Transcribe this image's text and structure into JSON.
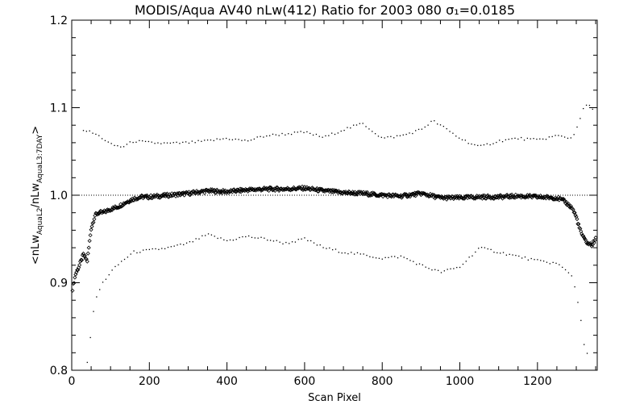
{
  "chart_data": {
    "type": "scatter",
    "title": "MODIS/Aqua AV40 nLw(412) Ratio for 2003 080 σ₁=0.0185",
    "xlabel": "Scan Pixel",
    "ylabel": "<nLw_AquaL2/nLw_AquaL3:7DAY>",
    "xlim": [
      0,
      1354
    ],
    "ylim": [
      0.8,
      1.2
    ],
    "xticks": [
      0,
      200,
      400,
      600,
      800,
      1000,
      1200
    ],
    "yticks": [
      0.8,
      0.9,
      1.0,
      1.1,
      1.2
    ],
    "reference_line": 1.0,
    "series": [
      {
        "key": "mean",
        "style": "diamond",
        "x": [
          2,
          10,
          20,
          30,
          40,
          50,
          60,
          70,
          80,
          100,
          120,
          140,
          160,
          180,
          200,
          250,
          300,
          350,
          400,
          450,
          500,
          550,
          600,
          650,
          700,
          750,
          800,
          850,
          900,
          950,
          1000,
          1050,
          1100,
          1150,
          1200,
          1250,
          1270,
          1290,
          1300,
          1310,
          1320,
          1330,
          1340,
          1350
        ],
        "y": [
          0.893,
          0.91,
          0.92,
          0.932,
          0.925,
          0.962,
          0.977,
          0.98,
          0.98,
          0.984,
          0.987,
          0.992,
          0.996,
          0.998,
          0.998,
          1.0,
          1.002,
          1.005,
          1.004,
          1.006,
          1.007,
          1.007,
          1.008,
          1.005,
          1.003,
          1.002,
          1.0,
          0.999,
          1.002,
          0.997,
          0.997,
          0.998,
          0.998,
          0.999,
          0.998,
          0.997,
          0.993,
          0.985,
          0.975,
          0.96,
          0.95,
          0.945,
          0.943,
          0.95
        ]
      },
      {
        "key": "upper",
        "style": "dot",
        "x": [
          30,
          60,
          80,
          100,
          130,
          160,
          200,
          250,
          300,
          350,
          400,
          450,
          500,
          550,
          600,
          650,
          700,
          750,
          800,
          850,
          900,
          930,
          950,
          1000,
          1050,
          1100,
          1150,
          1200,
          1250,
          1290,
          1320,
          1330,
          1345
        ],
        "y": [
          1.075,
          1.07,
          1.065,
          1.058,
          1.055,
          1.062,
          1.06,
          1.059,
          1.06,
          1.062,
          1.065,
          1.062,
          1.068,
          1.07,
          1.072,
          1.066,
          1.075,
          1.082,
          1.065,
          1.068,
          1.075,
          1.085,
          1.08,
          1.065,
          1.055,
          1.062,
          1.065,
          1.063,
          1.068,
          1.065,
          1.1,
          1.105,
          1.095
        ]
      },
      {
        "key": "lower",
        "style": "dot",
        "x": [
          40,
          60,
          80,
          100,
          130,
          160,
          200,
          250,
          300,
          350,
          400,
          450,
          500,
          550,
          600,
          650,
          700,
          750,
          800,
          850,
          900,
          950,
          1000,
          1050,
          1100,
          1150,
          1200,
          1250,
          1290,
          1310,
          1320,
          1330
        ],
        "y": [
          0.81,
          0.88,
          0.9,
          0.912,
          0.925,
          0.935,
          0.937,
          0.94,
          0.945,
          0.955,
          0.948,
          0.953,
          0.95,
          0.945,
          0.95,
          0.94,
          0.935,
          0.932,
          0.928,
          0.93,
          0.92,
          0.912,
          0.918,
          0.94,
          0.935,
          0.93,
          0.925,
          0.922,
          0.908,
          0.865,
          0.83,
          0.815
        ]
      }
    ]
  }
}
